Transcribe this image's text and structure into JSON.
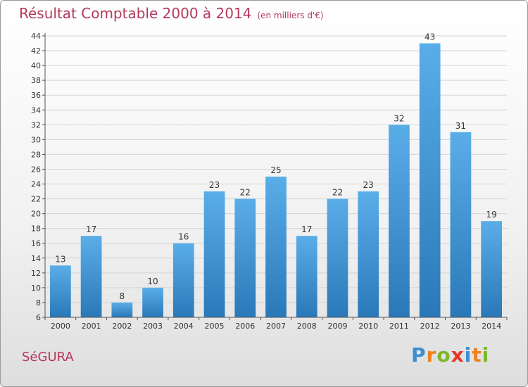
{
  "header": {
    "title": "Résultat Comptable 2000 à 2014",
    "unit": "(en milliers d'€)"
  },
  "footer": {
    "commune": "SéGURA",
    "logo_letters": [
      "P",
      "r",
      "o",
      "x",
      "i",
      "t",
      "i"
    ],
    "logo_colors": [
      "#3a8fd0",
      "#f0821e",
      "#7ab82a",
      "#e8352a",
      "#3a8fd0",
      "#f0821e",
      "#7ab82a"
    ]
  },
  "chart_data": {
    "type": "bar",
    "title": "Résultat Comptable 2000 à 2014",
    "subtitle": "(en milliers d'€)",
    "xlabel": "",
    "ylabel": "",
    "categories": [
      "2000",
      "2001",
      "2002",
      "2003",
      "2004",
      "2005",
      "2006",
      "2007",
      "2008",
      "2009",
      "2010",
      "2011",
      "2012",
      "2013",
      "2014"
    ],
    "values": [
      13,
      17,
      8,
      10,
      16,
      23,
      22,
      25,
      17,
      22,
      23,
      32,
      43,
      31,
      19
    ],
    "ylim": [
      6,
      44
    ],
    "yticks": [
      6,
      8,
      10,
      12,
      14,
      16,
      18,
      20,
      22,
      24,
      26,
      28,
      30,
      32,
      34,
      36,
      38,
      40,
      42,
      44
    ],
    "grid": true,
    "legend": "none",
    "bar_color_top": "#5aaee8",
    "bar_color_bottom": "#2a78b8"
  }
}
